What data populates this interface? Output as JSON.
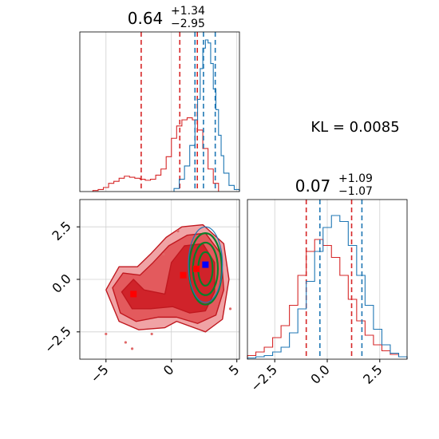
{
  "chart_data": [
    {
      "type": "histogram",
      "panel": "marginal-x",
      "title_value": "0.64",
      "title_plus": "+1.34",
      "title_minus": "−2.95",
      "xlim": [
        -7.0,
        5.2
      ],
      "grid": true,
      "series": [
        {
          "color": "#d62728",
          "bin_edges": [
            -6.0,
            -5.6,
            -5.2,
            -4.8,
            -4.4,
            -4.0,
            -3.6,
            -3.2,
            -2.8,
            -2.4,
            -2.0,
            -1.6,
            -1.2,
            -0.8,
            -0.4,
            0.0,
            0.4,
            0.8,
            1.2,
            1.6,
            2.0,
            2.4,
            2.8,
            3.2,
            3.6
          ],
          "heights": [
            1,
            2,
            4,
            8,
            10,
            13,
            15,
            14,
            13,
            12,
            11,
            12,
            16,
            22,
            34,
            52,
            64,
            70,
            72,
            70,
            60,
            42,
            22,
            8
          ],
          "quantile_lines": [
            -2.31,
            0.64,
            1.98
          ]
        },
        {
          "color": "#1f77b4",
          "bin_edges": [
            0.2,
            0.6,
            1.0,
            1.4,
            1.8,
            2.0,
            2.2,
            2.4,
            2.6,
            2.8,
            3.0,
            3.2,
            3.4,
            3.6,
            3.8,
            4.0,
            4.4,
            4.8,
            5.2
          ],
          "heights": [
            3,
            12,
            25,
            45,
            70,
            90,
            120,
            140,
            148,
            145,
            125,
            100,
            80,
            55,
            35,
            18,
            6,
            2
          ],
          "quantile_lines": [
            1.8,
            2.45,
            3.35
          ]
        }
      ]
    },
    {
      "type": "contour",
      "panel": "joint",
      "xlim": [
        -7.0,
        5.2
      ],
      "ylim": [
        -3.8,
        3.8
      ],
      "grid": true,
      "x_ticks": [
        "−5",
        "0",
        "5"
      ],
      "y_ticks": [
        "−2.5",
        "0.0",
        "2.5"
      ],
      "series": [
        {
          "color": "#d62728",
          "filled_levels": 3,
          "peak_markers": [
            [
              -2.9,
              -0.7
            ],
            [
              0.9,
              0.2
            ],
            [
              1.9,
              0.5
            ]
          ]
        },
        {
          "color": "#1f77b4",
          "peak_markers": [
            [
              2.6,
              0.7
            ]
          ]
        },
        {
          "color": "#2ca02c",
          "center": [
            2.6,
            0.5
          ],
          "ellipses": [
            [
              1.25,
              1.7
            ],
            [
              0.95,
              1.25
            ],
            [
              0.55,
              0.8
            ]
          ]
        }
      ]
    },
    {
      "type": "histogram",
      "panel": "marginal-y",
      "title_value": "0.07",
      "title_plus": "+1.09",
      "title_minus": "−1.07",
      "xlim": [
        -3.8,
        3.8
      ],
      "x_ticks": [
        "−2.5",
        "0.0",
        "2.5"
      ],
      "grid": true,
      "series": [
        {
          "color": "#d62728",
          "bin_edges": [
            -3.8,
            -3.4,
            -3.0,
            -2.6,
            -2.2,
            -1.8,
            -1.4,
            -1.0,
            -0.6,
            -0.2,
            0.2,
            0.6,
            1.0,
            1.4,
            1.8,
            2.2,
            2.6,
            3.0,
            3.4,
            3.8
          ],
          "heights": [
            3,
            6,
            10,
            18,
            28,
            45,
            70,
            90,
            100,
            95,
            85,
            70,
            50,
            32,
            20,
            12,
            7,
            4,
            2
          ],
          "quantile_lines": [
            -1.0,
            1.16
          ]
        },
        {
          "color": "#1f77b4",
          "bin_edges": [
            -3.8,
            -3.4,
            -3.0,
            -2.6,
            -2.2,
            -1.8,
            -1.4,
            -1.0,
            -0.6,
            -0.2,
            0.2,
            0.6,
            1.0,
            1.4,
            1.8,
            2.2,
            2.6,
            3.0,
            3.4,
            3.8
          ],
          "heights": [
            1,
            2,
            3,
            6,
            10,
            22,
            42,
            65,
            90,
            110,
            120,
            115,
            95,
            70,
            45,
            25,
            12,
            5,
            2
          ],
          "quantile_lines": [
            -0.35,
            1.65
          ]
        }
      ]
    }
  ],
  "annotation": {
    "kl_text": "KL = 0.0085"
  }
}
